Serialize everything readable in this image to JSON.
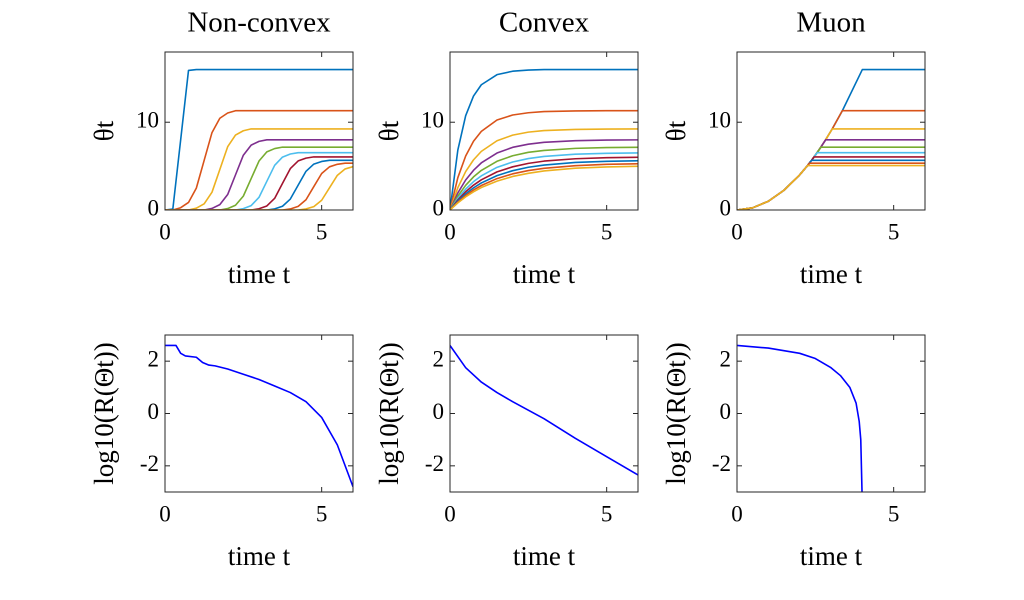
{
  "chart_data": [
    {
      "type": "line",
      "title": "Non-convex",
      "xlabel": "time t",
      "ylabel": "θt",
      "xlim": [
        0,
        6
      ],
      "ylim": [
        0,
        18
      ],
      "xticks": [
        0,
        5
      ],
      "yticks": [
        0,
        10
      ],
      "x": [
        0,
        0.25,
        0.5,
        0.75,
        1,
        1.25,
        1.5,
        1.75,
        2,
        2.25,
        2.5,
        2.75,
        3,
        3.25,
        3.5,
        3.75,
        4,
        4.25,
        4.5,
        4.75,
        5,
        5.25,
        5.5,
        5.75,
        6
      ],
      "series": [
        {
          "color": "#0072BD",
          "values": [
            0,
            0.11,
            8,
            15.9,
            16,
            16,
            16,
            16,
            16,
            16,
            16,
            16,
            16,
            16,
            16,
            16,
            16,
            16,
            16,
            16,
            16,
            16,
            16,
            16,
            16
          ]
        },
        {
          "color": "#D95319",
          "values": [
            0,
            0,
            0.26,
            0.86,
            2.49,
            5.66,
            8.82,
            10.45,
            11.05,
            11.31,
            11.31,
            11.31,
            11.31,
            11.31,
            11.31,
            11.31,
            11.31,
            11.31,
            11.31,
            11.31,
            11.31,
            11.31,
            11.31,
            11.31,
            11.31
          ]
        },
        {
          "color": "#EDB120",
          "values": [
            0,
            0,
            0,
            0,
            0.21,
            0.7,
            2.03,
            4.62,
            7.21,
            8.54,
            9.03,
            9.24,
            9.24,
            9.24,
            9.24,
            9.24,
            9.24,
            9.24,
            9.24,
            9.24,
            9.24,
            9.24,
            9.24,
            9.24,
            9.24
          ]
        },
        {
          "color": "#7E2F8E",
          "values": [
            0,
            0,
            0,
            0,
            0,
            0,
            0.18,
            0.61,
            1.76,
            4,
            6.24,
            7.39,
            7.82,
            8,
            8,
            8,
            8,
            8,
            8,
            8,
            8,
            8,
            8,
            8,
            8
          ]
        },
        {
          "color": "#77AC30",
          "values": [
            0,
            0,
            0,
            0,
            0,
            0,
            0,
            0,
            0.16,
            0.54,
            1.58,
            3.58,
            5.58,
            6.62,
            7,
            7.16,
            7.16,
            7.16,
            7.16,
            7.16,
            7.16,
            7.16,
            7.16,
            7.16,
            7.16
          ]
        },
        {
          "color": "#4DBEEE",
          "values": [
            0,
            0,
            0,
            0,
            0,
            0,
            0,
            0,
            0,
            0,
            0.15,
            0.5,
            1.44,
            3.27,
            5.09,
            6.03,
            6.38,
            6.53,
            6.53,
            6.53,
            6.53,
            6.53,
            6.53,
            6.53,
            6.53
          ]
        },
        {
          "color": "#A2142F",
          "values": [
            0,
            0,
            0,
            0,
            0,
            0,
            0,
            0,
            0,
            0,
            0,
            0,
            0.14,
            0.46,
            1.33,
            3.03,
            4.72,
            5.59,
            5.91,
            6.05,
            6.05,
            6.05,
            6.05,
            6.05,
            6.05
          ]
        },
        {
          "color": "#0072BD",
          "values": [
            0,
            0,
            0,
            0,
            0,
            0,
            0,
            0,
            0,
            0,
            0,
            0,
            0,
            0,
            0.13,
            0.43,
            1.25,
            2.83,
            4.41,
            5.23,
            5.53,
            5.66,
            5.66,
            5.66,
            5.66
          ]
        },
        {
          "color": "#D95319",
          "values": [
            0,
            0,
            0,
            0,
            0,
            0,
            0,
            0,
            0,
            0,
            0,
            0,
            0,
            0,
            0,
            0,
            0.12,
            0.41,
            1.17,
            2.67,
            4.16,
            4.92,
            5.21,
            5.33,
            5.33
          ]
        },
        {
          "color": "#EDB120",
          "values": [
            0,
            0,
            0,
            0,
            0,
            0,
            0,
            0,
            0,
            0,
            0,
            0,
            0,
            0,
            0,
            0,
            0,
            0,
            0.12,
            0.38,
            1.11,
            2.53,
            3.95,
            4.68,
            4.94
          ]
        }
      ]
    },
    {
      "type": "line",
      "title": "Convex",
      "xlabel": "time t",
      "ylabel": "θt",
      "xlim": [
        0,
        6
      ],
      "ylim": [
        0,
        18
      ],
      "xticks": [
        0,
        5
      ],
      "yticks": [
        0,
        10
      ],
      "x": [
        0,
        0.25,
        0.5,
        0.75,
        1,
        1.5,
        2,
        2.5,
        3,
        4,
        5,
        6
      ],
      "series": [
        {
          "color": "#0072BD",
          "values": [
            0,
            6.83,
            10.74,
            12.98,
            14.27,
            15.42,
            15.81,
            15.94,
            16,
            16,
            16,
            16
          ]
        },
        {
          "color": "#D95319",
          "values": [
            0,
            3.68,
            6.15,
            7.83,
            8.96,
            10.25,
            10.82,
            11.08,
            11.21,
            11.29,
            11.31,
            11.31
          ]
        },
        {
          "color": "#EDB120",
          "values": [
            0,
            2.54,
            4.38,
            5.71,
            6.68,
            7.89,
            8.53,
            8.87,
            9.05,
            9.18,
            9.22,
            9.24
          ]
        },
        {
          "color": "#7E2F8E",
          "values": [
            0,
            1.94,
            3.42,
            4.52,
            5.37,
            6.49,
            7.14,
            7.5,
            7.71,
            7.9,
            7.97,
            7.99
          ]
        },
        {
          "color": "#77AC30",
          "values": [
            0,
            1.58,
            2.81,
            3.77,
            4.51,
            5.55,
            6.18,
            6.57,
            6.79,
            7.02,
            7.11,
            7.14
          ]
        },
        {
          "color": "#4DBEEE",
          "values": [
            0,
            1.33,
            2.38,
            3.23,
            3.89,
            4.86,
            5.47,
            5.86,
            6.1,
            6.36,
            6.46,
            6.5
          ]
        },
        {
          "color": "#A2142F",
          "values": [
            0,
            1.14,
            2.08,
            2.83,
            3.44,
            4.34,
            4.92,
            5.31,
            5.57,
            5.84,
            5.96,
            6.01
          ]
        },
        {
          "color": "#0072BD",
          "values": [
            0,
            1.01,
            1.84,
            2.52,
            3.08,
            3.92,
            4.48,
            4.87,
            5.12,
            5.42,
            5.55,
            5.61
          ]
        },
        {
          "color": "#D95319",
          "values": [
            0,
            0.9,
            1.65,
            2.28,
            2.79,
            3.58,
            4.12,
            4.49,
            4.75,
            5.05,
            5.2,
            5.27
          ]
        },
        {
          "color": "#EDB120",
          "values": [
            0,
            0.81,
            1.5,
            2.07,
            2.56,
            3.29,
            3.82,
            4.18,
            4.45,
            4.76,
            4.91,
            4.98
          ]
        }
      ]
    },
    {
      "type": "line",
      "title": "Muon",
      "xlabel": "time t",
      "ylabel": "θt",
      "xlim": [
        0,
        6
      ],
      "ylim": [
        0,
        18
      ],
      "xticks": [
        0,
        5
      ],
      "yticks": [
        0,
        10
      ],
      "x": [
        0,
        0.5,
        1,
        1.5,
        2,
        2.25,
        2.31,
        2.38,
        2.46,
        2.56,
        2.68,
        2.83,
        3.04,
        3.36,
        4,
        5,
        6
      ],
      "series": [
        {
          "color": "#0072BD",
          "values": [
            0,
            0.25,
            1,
            2.25,
            4,
            5.06,
            5.34,
            5.66,
            6.05,
            6.55,
            7.18,
            8.01,
            9.24,
            11.29,
            16,
            16,
            16
          ]
        },
        {
          "color": "#D95319",
          "values": [
            0,
            0.25,
            1,
            2.25,
            4,
            5.06,
            5.34,
            5.66,
            6.05,
            6.55,
            7.18,
            8.01,
            9.24,
            11.31,
            11.31,
            11.31,
            11.31
          ]
        },
        {
          "color": "#EDB120",
          "values": [
            0,
            0.25,
            1,
            2.25,
            4,
            5.06,
            5.34,
            5.66,
            6.05,
            6.55,
            7.18,
            8.01,
            9.24,
            9.24,
            9.24,
            9.24,
            9.24
          ]
        },
        {
          "color": "#7E2F8E",
          "values": [
            0,
            0.25,
            1,
            2.25,
            4,
            5.06,
            5.34,
            5.66,
            6.05,
            6.55,
            7.18,
            8,
            8,
            8,
            8,
            8,
            8
          ]
        },
        {
          "color": "#77AC30",
          "values": [
            0,
            0.25,
            1,
            2.25,
            4,
            5.06,
            5.34,
            5.66,
            6.05,
            6.55,
            7.16,
            7.16,
            7.16,
            7.16,
            7.16,
            7.16,
            7.16
          ]
        },
        {
          "color": "#4DBEEE",
          "values": [
            0,
            0.25,
            1,
            2.25,
            4,
            5.06,
            5.34,
            5.66,
            6.05,
            6.53,
            6.53,
            6.53,
            6.53,
            6.53,
            6.53,
            6.53,
            6.53
          ]
        },
        {
          "color": "#A2142F",
          "values": [
            0,
            0.25,
            1,
            2.25,
            4,
            5.06,
            5.34,
            5.66,
            6.05,
            6.05,
            6.05,
            6.05,
            6.05,
            6.05,
            6.05,
            6.05,
            6.05
          ]
        },
        {
          "color": "#0072BD",
          "values": [
            0,
            0.25,
            1,
            2.25,
            4,
            5.06,
            5.34,
            5.66,
            5.66,
            5.66,
            5.66,
            5.66,
            5.66,
            5.66,
            5.66,
            5.66,
            5.66
          ]
        },
        {
          "color": "#D95319",
          "values": [
            0,
            0.25,
            1,
            2.25,
            4,
            5.06,
            5.33,
            5.33,
            5.33,
            5.33,
            5.33,
            5.33,
            5.33,
            5.33,
            5.33,
            5.33,
            5.33
          ]
        },
        {
          "color": "#EDB120",
          "values": [
            0,
            0.25,
            1,
            2.25,
            4,
            5.06,
            5.06,
            5.06,
            5.06,
            5.06,
            5.06,
            5.06,
            5.06,
            5.06,
            5.06,
            5.06,
            5.06
          ]
        }
      ]
    },
    {
      "type": "line",
      "xlabel": "time t",
      "ylabel": "log10(R(Θt))",
      "xlim": [
        0,
        6
      ],
      "ylim": [
        -3,
        3
      ],
      "xticks": [
        0,
        5
      ],
      "yticks": [
        -2,
        0,
        2
      ],
      "x": [
        0,
        0.35,
        0.5,
        0.65,
        1,
        1.2,
        1.4,
        1.6,
        2,
        2.5,
        3,
        3.5,
        4,
        4.5,
        5,
        5.5,
        6
      ],
      "series": [
        {
          "color": "#0000FF",
          "values": [
            2.6,
            2.6,
            2.3,
            2.2,
            2.15,
            1.95,
            1.85,
            1.82,
            1.7,
            1.5,
            1.3,
            1.05,
            0.8,
            0.45,
            -0.15,
            -1.2,
            -2.8
          ]
        }
      ]
    },
    {
      "type": "line",
      "xlabel": "time t",
      "ylabel": "log10(R(Θt))",
      "xlim": [
        0,
        6
      ],
      "ylim": [
        -3,
        3
      ],
      "xticks": [
        0,
        5
      ],
      "yticks": [
        -2,
        0,
        2
      ],
      "x": [
        0,
        0.5,
        1,
        1.5,
        2,
        3,
        4,
        5,
        6
      ],
      "series": [
        {
          "color": "#0000FF",
          "values": [
            2.6,
            1.75,
            1.2,
            0.8,
            0.45,
            -0.2,
            -0.95,
            -1.65,
            -2.35
          ]
        }
      ]
    },
    {
      "type": "line",
      "xlabel": "time t",
      "ylabel": "log10(R(Θt))",
      "xlim": [
        0,
        6
      ],
      "ylim": [
        -3,
        3
      ],
      "xticks": [
        0,
        5
      ],
      "yticks": [
        -2,
        0,
        2
      ],
      "x": [
        0,
        1,
        2,
        2.5,
        3,
        3.3,
        3.6,
        3.8,
        3.9,
        3.95,
        3.99
      ],
      "series": [
        {
          "color": "#0000FF",
          "values": [
            2.6,
            2.5,
            2.3,
            2.1,
            1.75,
            1.45,
            1,
            0.4,
            -0.3,
            -1,
            -3
          ]
        }
      ]
    }
  ]
}
